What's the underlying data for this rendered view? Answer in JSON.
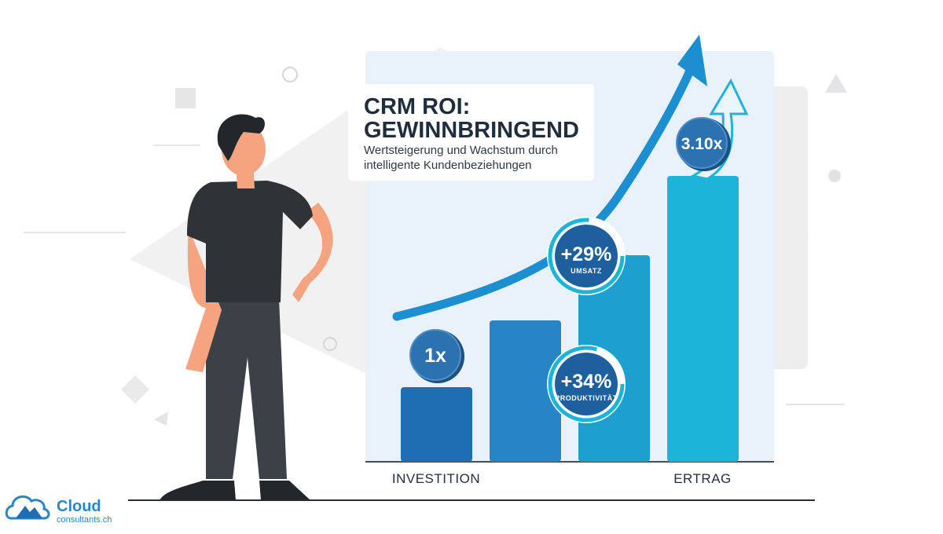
{
  "header": {
    "title_lines": [
      "CRM ROI:",
      "GEWINNBRINGEND"
    ],
    "subtitle_lines": [
      "Wertsteigerung und Wachstum durch",
      "intelligente Kundenbeziehungen"
    ]
  },
  "badges": [
    {
      "label": "1x"
    },
    {
      "label": "+29%",
      "caption": "UMSATZ"
    },
    {
      "label": "+34%",
      "caption": "PRODUKTIVITÄT"
    },
    {
      "label": "3.10x"
    }
  ],
  "axis": {
    "start": "INVESTITION",
    "end": "ERTRAG"
  },
  "logo": {
    "name": "Cloud",
    "domain": "consultants.ch"
  }
}
